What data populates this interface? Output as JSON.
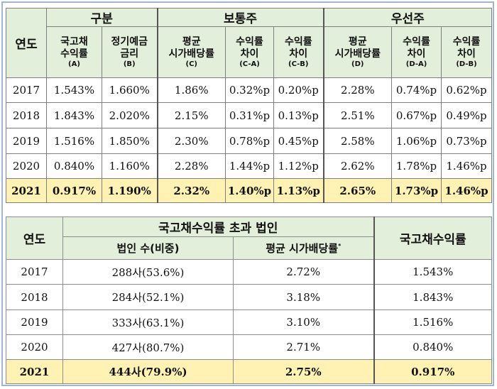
{
  "table1": {
    "year_header": "연도",
    "group_headers": [
      "구분",
      "보통주",
      "우선주"
    ],
    "columns": [
      {
        "line1": "국고채",
        "line2": "수익률",
        "code": "(A)"
      },
      {
        "line1": "정기예금",
        "line2": "금리",
        "code": "(B)"
      },
      {
        "line1": "평균",
        "line2": "시가배당률",
        "code": "(C)"
      },
      {
        "line1": "수익률",
        "line2": "차이",
        "code": "(C-A)"
      },
      {
        "line1": "수익률",
        "line2": "차이",
        "code": "(C-B)"
      },
      {
        "line1": "평균",
        "line2": "시가배당률",
        "code": "(D)"
      },
      {
        "line1": "수익률",
        "line2": "차이",
        "code": "(D-A)"
      },
      {
        "line1": "수익률",
        "line2": "차이",
        "code": "(D-B)"
      }
    ],
    "rows": [
      {
        "year": "2017",
        "cells": [
          "1.543%",
          "1.660%",
          "1.86%",
          "0.32%p",
          "0.20%p",
          "2.28%",
          "0.74%p",
          "0.62%p"
        ]
      },
      {
        "year": "2018",
        "cells": [
          "1.843%",
          "2.020%",
          "2.15%",
          "0.31%p",
          "0.13%p",
          "2.51%",
          "0.67%p",
          "0.49%p"
        ]
      },
      {
        "year": "2019",
        "cells": [
          "1.516%",
          "1.850%",
          "2.30%",
          "0.78%p",
          "0.45%p",
          "2.58%",
          "1.06%p",
          "0.73%p"
        ]
      },
      {
        "year": "2020",
        "cells": [
          "0.840%",
          "1.160%",
          "2.28%",
          "1.44%p",
          "1.12%p",
          "2.62%",
          "1.78%p",
          "1.46%p"
        ]
      },
      {
        "year": "2021",
        "cells": [
          "0.917%",
          "1.190%",
          "2.32%",
          "1.40%p",
          "1.13%p",
          "2.65%",
          "1.73%p",
          "1.46%p"
        ]
      }
    ]
  },
  "table2": {
    "year_header": "연도",
    "group_header": "국고채수익률 초과 법인",
    "col_corp": "법인 수(비중)",
    "col_div": "평균 시가배당률",
    "col_div_mark": "*",
    "col_gov": "국고채수익률",
    "rows": [
      {
        "year": "2017",
        "corp": "288사(53.6%)",
        "div": "2.72%",
        "gov": "1.543%"
      },
      {
        "year": "2018",
        "corp": "284사(52.1%)",
        "div": "3.18%",
        "gov": "1.843%"
      },
      {
        "year": "2019",
        "corp": "333사(63.1%)",
        "div": "3.10%",
        "gov": "1.516%"
      },
      {
        "year": "2020",
        "corp": "427사(80.7%)",
        "div": "2.71%",
        "gov": "0.840%"
      },
      {
        "year": "2021",
        "corp": "444사(79.9%)",
        "div": "2.75%",
        "gov": "0.917%"
      }
    ]
  },
  "colors": {
    "header_bg": "#e2efda",
    "highlight_bg": "#fff2b3",
    "frame": "#9fb6cf"
  }
}
